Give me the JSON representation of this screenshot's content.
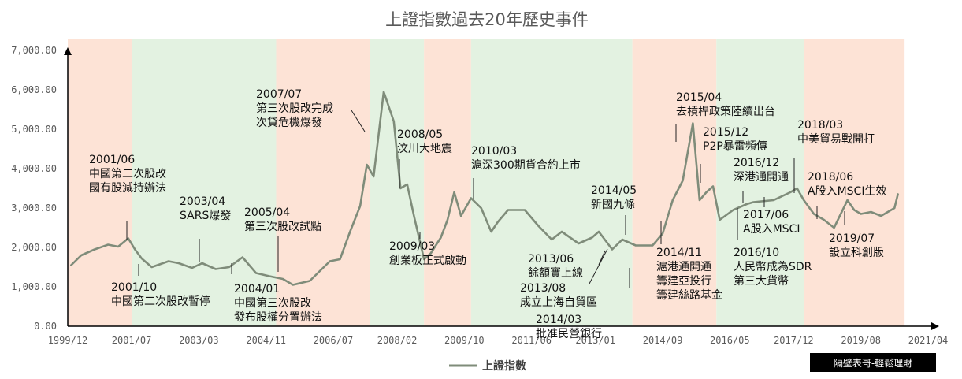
{
  "chart_data": {
    "type": "line",
    "title": "上證指數過去20年歷史事件",
    "xlabel": "",
    "ylabel": "",
    "ylim": [
      0,
      7000
    ],
    "xlim": [
      "1999-12",
      "2021-04"
    ],
    "y_ticks": [
      "0.00",
      "1,000.00",
      "2,000.00",
      "3,000.00",
      "4,000.00",
      "5,000.00",
      "6,000.00",
      "7,000.00"
    ],
    "x_ticks": [
      "1999/12",
      "2001/07",
      "2003/03",
      "2004/11",
      "2006/07",
      "2008/02",
      "2009/10",
      "2011/06",
      "2013/01",
      "2014/09",
      "2016/05",
      "2017/12",
      "2019/08",
      "2021/04"
    ],
    "legend": {
      "position": "bottom-center",
      "entries": [
        "上證指數"
      ]
    },
    "series": [
      {
        "name": "上證指數",
        "color": "#7f8c7a",
        "points": [
          [
            "2000-01",
            1550
          ],
          [
            "2000-04",
            1800
          ],
          [
            "2000-08",
            1950
          ],
          [
            "2000-12",
            2070
          ],
          [
            "2001-03",
            2020
          ],
          [
            "2001-06",
            2230
          ],
          [
            "2001-08",
            1950
          ],
          [
            "2001-10",
            1720
          ],
          [
            "2002-01",
            1500
          ],
          [
            "2002-06",
            1650
          ],
          [
            "2002-09",
            1600
          ],
          [
            "2003-01",
            1480
          ],
          [
            "2003-04",
            1600
          ],
          [
            "2003-08",
            1450
          ],
          [
            "2003-12",
            1500
          ],
          [
            "2004-04",
            1750
          ],
          [
            "2004-08",
            1350
          ],
          [
            "2004-12",
            1270
          ],
          [
            "2005-04",
            1200
          ],
          [
            "2005-07",
            1050
          ],
          [
            "2005-12",
            1150
          ],
          [
            "2006-06",
            1650
          ],
          [
            "2006-09",
            1700
          ],
          [
            "2006-12",
            2400
          ],
          [
            "2007-03",
            3050
          ],
          [
            "2007-05",
            4100
          ],
          [
            "2007-07",
            3800
          ],
          [
            "2007-10",
            5950
          ],
          [
            "2008-01",
            5200
          ],
          [
            "2008-03",
            3500
          ],
          [
            "2008-05",
            3600
          ],
          [
            "2008-07",
            2800
          ],
          [
            "2008-10",
            1700
          ],
          [
            "2008-12",
            1850
          ],
          [
            "2009-03",
            2250
          ],
          [
            "2009-05",
            2700
          ],
          [
            "2009-07",
            3400
          ],
          [
            "2009-09",
            2800
          ],
          [
            "2009-12",
            3250
          ],
          [
            "2010-03",
            3000
          ],
          [
            "2010-06",
            2400
          ],
          [
            "2010-08",
            2650
          ],
          [
            "2010-11",
            2950
          ],
          [
            "2011-04",
            2950
          ],
          [
            "2011-08",
            2550
          ],
          [
            "2011-12",
            2200
          ],
          [
            "2012-03",
            2400
          ],
          [
            "2012-08",
            2100
          ],
          [
            "2012-12",
            2250
          ],
          [
            "2013-02",
            2400
          ],
          [
            "2013-06",
            1950
          ],
          [
            "2013-09",
            2200
          ],
          [
            "2014-01",
            2050
          ],
          [
            "2014-06",
            2050
          ],
          [
            "2014-09",
            2350
          ],
          [
            "2014-12",
            3200
          ],
          [
            "2015-03",
            3700
          ],
          [
            "2015-06",
            5150
          ],
          [
            "2015-08",
            3200
          ],
          [
            "2015-10",
            3400
          ],
          [
            "2015-12",
            3550
          ],
          [
            "2016-02",
            2700
          ],
          [
            "2016-06",
            2950
          ],
          [
            "2016-10",
            3100
          ],
          [
            "2016-12",
            3150
          ],
          [
            "2017-06",
            3200
          ],
          [
            "2017-11",
            3400
          ],
          [
            "2018-01",
            3500
          ],
          [
            "2018-03",
            3200
          ],
          [
            "2018-06",
            2850
          ],
          [
            "2018-09",
            2700
          ],
          [
            "2018-12",
            2500
          ],
          [
            "2019-04",
            3200
          ],
          [
            "2019-06",
            2950
          ],
          [
            "2019-08",
            2850
          ],
          [
            "2019-11",
            2900
          ],
          [
            "2020-02",
            2800
          ],
          [
            "2020-06",
            3000
          ],
          [
            "2020-07",
            3350
          ]
        ]
      }
    ],
    "background_bands": [
      {
        "from": "1999-12",
        "to": "2001-07",
        "color": "#fde3d6"
      },
      {
        "from": "2001-07",
        "to": "2005-02",
        "color": "#e3f2e1"
      },
      {
        "from": "2005-02",
        "to": "2007-06",
        "color": "#fde3d6"
      },
      {
        "from": "2007-06",
        "to": "2008-10",
        "color": "#e3f2e1"
      },
      {
        "from": "2008-10",
        "to": "2009-12",
        "color": "#fde3d6"
      },
      {
        "from": "2009-12",
        "to": "2013-12",
        "color": "#e3f2e1"
      },
      {
        "from": "2013-12",
        "to": "2016-01",
        "color": "#fde3d6"
      },
      {
        "from": "2016-01",
        "to": "2018-03",
        "color": "#e3f2e1"
      },
      {
        "from": "2018-03",
        "to": "2020-09",
        "color": "#fde3d6"
      }
    ],
    "annotations": [
      {
        "lines": [
          "2001/06",
          "中國第二次股改",
          "國有股減持辦法"
        ],
        "date": "2001-06",
        "pos": "above"
      },
      {
        "lines": [
          "2001/10",
          "中國第二次股改暫停"
        ],
        "date": "2001-10",
        "pos": "below"
      },
      {
        "lines": [
          "2003/04",
          "SARS爆發"
        ],
        "date": "2003-04",
        "pos": "above"
      },
      {
        "lines": [
          "2004/01",
          "中國第三次股改",
          "發布股權分置辦法"
        ],
        "date": "2004-01",
        "pos": "below"
      },
      {
        "lines": [
          "2005/04",
          "第三次股改試點"
        ],
        "date": "2005-04",
        "pos": "above"
      },
      {
        "lines": [
          "2007/07",
          "第三次股改完成",
          "次貸危機爆發"
        ],
        "date": "2007-07",
        "pos": "above"
      },
      {
        "lines": [
          "2008/05",
          "汶川大地震"
        ],
        "date": "2008-05",
        "pos": "above"
      },
      {
        "lines": [
          "2009/03",
          "創業板正式啟動"
        ],
        "date": "2009-03",
        "pos": "below"
      },
      {
        "lines": [
          "2010/03",
          "滬深300期貨合約上市"
        ],
        "date": "2010-03",
        "pos": "above"
      },
      {
        "lines": [
          "2013/06",
          "餘額寶上線"
        ],
        "date": "2013-06",
        "pos": "below"
      },
      {
        "lines": [
          "2013/08",
          "成立上海自貿區"
        ],
        "date": "2013-08",
        "pos": "below"
      },
      {
        "lines": [
          "2014/03",
          "批准民營銀行"
        ],
        "date": "2014-03",
        "pos": "below"
      },
      {
        "lines": [
          "2014/05",
          "新國九條"
        ],
        "date": "2014-05",
        "pos": "above"
      },
      {
        "lines": [
          "2014/11",
          "滬港通開通",
          "籌建亞投行",
          "籌建絲路基金"
        ],
        "date": "2014-11",
        "pos": "below"
      },
      {
        "lines": [
          "2015/04",
          "去槓桿政策陸續出台"
        ],
        "date": "2015-04",
        "pos": "above"
      },
      {
        "lines": [
          "2015/12",
          "P2P暴雷頻傳"
        ],
        "date": "2015-12",
        "pos": "above"
      },
      {
        "lines": [
          "2016/10",
          "人民幣成為SDR",
          "第三大貨幣"
        ],
        "date": "2016-10",
        "pos": "below"
      },
      {
        "lines": [
          "2016/12",
          "深港通開通"
        ],
        "date": "2016-12",
        "pos": "above"
      },
      {
        "lines": [
          "2017/06",
          "A股入MSCI"
        ],
        "date": "2017-06",
        "pos": "below"
      },
      {
        "lines": [
          "2018/03",
          "中美貿易戰開打"
        ],
        "date": "2018-03",
        "pos": "above"
      },
      {
        "lines": [
          "2018/06",
          "A股入MSCI生效"
        ],
        "date": "2018-06",
        "pos": "above"
      },
      {
        "lines": [
          "2019/07",
          "設立科創版"
        ],
        "date": "2019-07",
        "pos": "below"
      }
    ]
  },
  "credit": "隔壁表哥-輕鬆理財"
}
